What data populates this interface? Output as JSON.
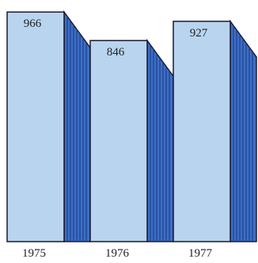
{
  "chart_data": {
    "type": "bar",
    "categories": [
      "1975",
      "1976",
      "1977"
    ],
    "values": [
      966,
      846,
      927
    ],
    "title": "",
    "xlabel": "",
    "ylabel": "",
    "data_labels": [
      "966",
      "846",
      "927"
    ],
    "style": "3d-bars",
    "grid": false,
    "colors": {
      "front": "#b8d4ef",
      "side": "#3d6fc6",
      "side_stripe": "#1d3f8a",
      "outline": "#1a1a2e",
      "label": "#222222"
    }
  }
}
